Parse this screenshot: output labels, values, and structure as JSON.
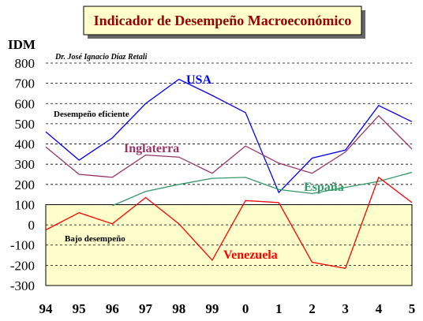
{
  "chart_data": {
    "type": "line",
    "title": "Indicador de Desempeño Macroeconómico",
    "author": "Dr. José Ignacio Díaz Retali",
    "ylabel": "IDM",
    "xlabel": "",
    "categories": [
      "94",
      "95",
      "96",
      "97",
      "98",
      "99",
      "0",
      "1",
      "2",
      "3",
      "4",
      "5"
    ],
    "ylim": [
      -300,
      800
    ],
    "yticks": [
      800,
      700,
      600,
      500,
      400,
      300,
      200,
      100,
      0,
      -100,
      -200,
      -300
    ],
    "grid": "dashed horizontal",
    "zones": [
      {
        "label": "Desempeño eficiente",
        "from": 100,
        "to": 800,
        "color": "#ffffff"
      },
      {
        "label": "Bajo desempeño",
        "from": -300,
        "to": 100,
        "color": "#ffffcc"
      }
    ],
    "series": [
      {
        "name": "USA",
        "color": "#0000ff",
        "values": [
          460,
          320,
          430,
          600,
          720,
          640,
          555,
          160,
          330,
          370,
          590,
          510
        ]
      },
      {
        "name": "Inglaterra",
        "color": "#993366",
        "values": [
          385,
          250,
          235,
          345,
          335,
          255,
          390,
          305,
          255,
          360,
          540,
          375
        ]
      },
      {
        "name": "España",
        "color": "#339966",
        "values": [
          null,
          null,
          95,
          165,
          200,
          230,
          235,
          175,
          155,
          185,
          215,
          260
        ]
      },
      {
        "name": "Venezuela",
        "color": "#ff0000",
        "values": [
          -25,
          60,
          5,
          135,
          5,
          -175,
          120,
          110,
          -185,
          -215,
          235,
          110
        ]
      }
    ]
  }
}
